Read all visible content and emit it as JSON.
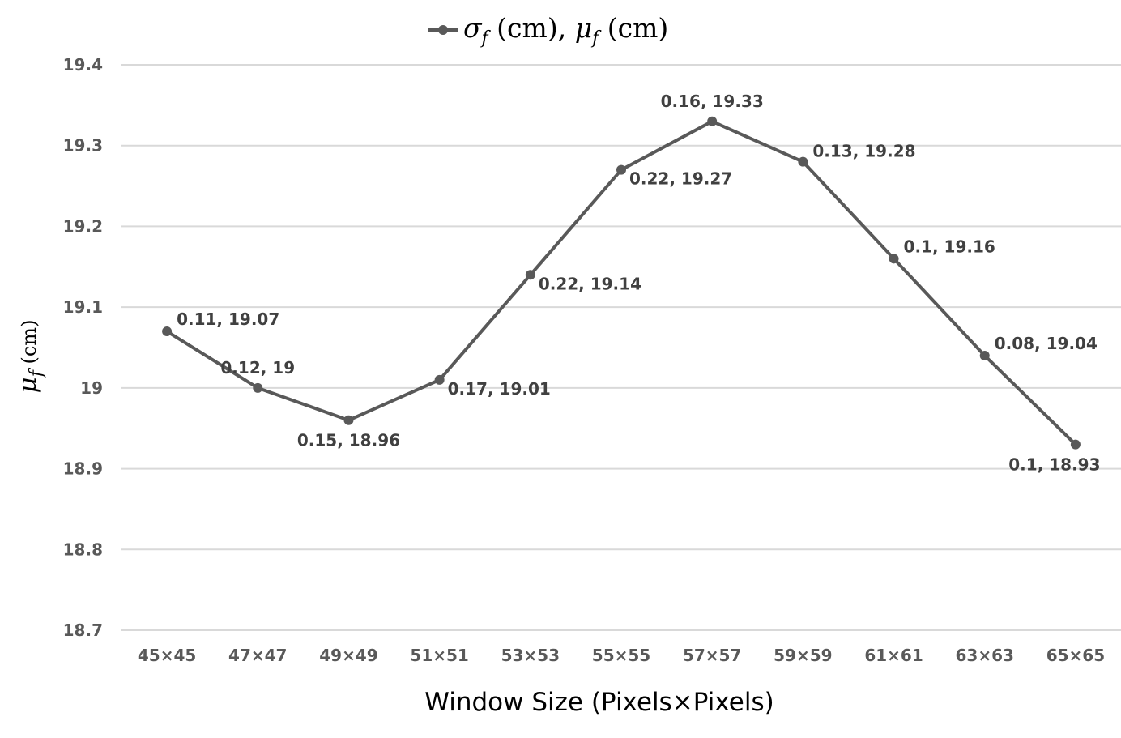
{
  "chart_data": {
    "type": "line",
    "legend_position": "top",
    "grid": true,
    "legend": {
      "sigma": "σ",
      "sub1": "f",
      "mid": " (cm), ",
      "mu": "μ",
      "sub2": "f",
      "tail": " (cm)"
    },
    "xlabel": "Window Size (Pixels×Pixels)",
    "ylabel": {
      "mu": "μ",
      "sub": "f",
      "unit": " (cm)"
    },
    "ylim": [
      18.7,
      19.4
    ],
    "yticks": [
      "19.4",
      "19.3",
      "19.2",
      "19.1",
      "19",
      "18.9",
      "18.8",
      "18.7"
    ],
    "ytick_values": [
      19.4,
      19.3,
      19.2,
      19.1,
      19.0,
      18.9,
      18.8,
      18.7
    ],
    "categories": [
      "45×45",
      "47×47",
      "49×49",
      "51×51",
      "53×53",
      "55×55",
      "57×57",
      "59×59",
      "61×61",
      "63×63",
      "65×65"
    ],
    "series": [
      {
        "values": [
          19.07,
          19.0,
          18.96,
          19.01,
          19.14,
          19.27,
          19.33,
          19.28,
          19.16,
          19.04,
          18.93
        ],
        "sigma": [
          0.11,
          0.12,
          0.15,
          0.17,
          0.22,
          0.22,
          0.16,
          0.13,
          0.1,
          0.08,
          0.1
        ],
        "labels": [
          "0.11, 19.07",
          "0.12, 19",
          "0.15, 18.96",
          "0.17, 19.01",
          "0.22, 19.14",
          "0.22, 19.27",
          "0.16, 19.33",
          "0.13, 19.28",
          "0.1, 19.16",
          "0.08, 19.04",
          "0.1, 18.93"
        ],
        "label_positions": [
          "above-right",
          "above",
          "below",
          "below-right",
          "below-right",
          "below-right",
          "above",
          "right",
          "above-right",
          "above-right",
          "below"
        ],
        "color": "#595959"
      }
    ]
  }
}
